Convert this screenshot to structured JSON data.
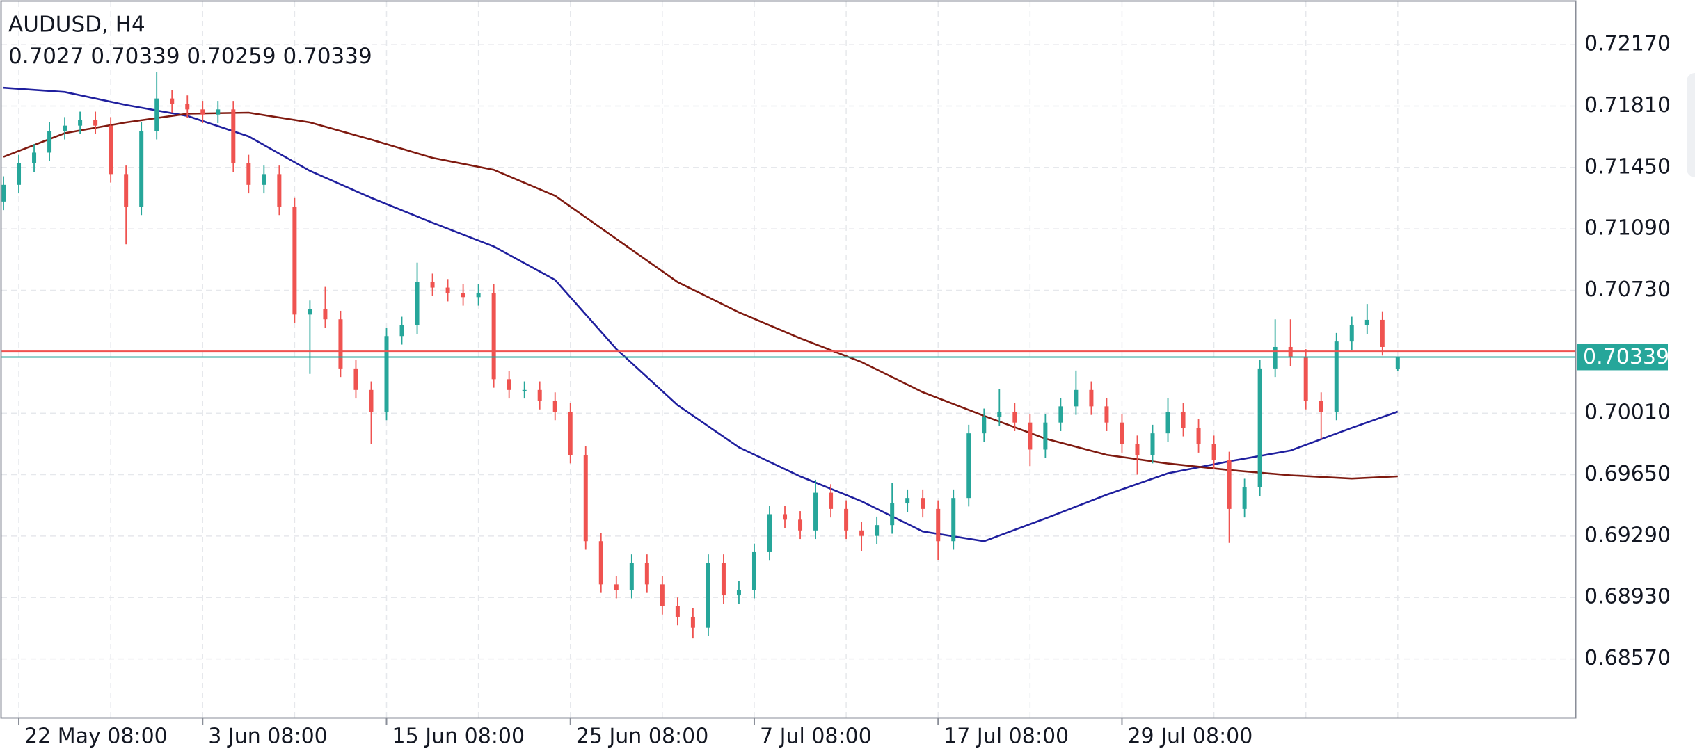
{
  "chart_data": {
    "type": "candlestick",
    "title": "AUDUSD, H4",
    "x": [
      null,
      "22 May 08:00",
      null,
      null,
      null,
      null,
      null,
      null,
      null,
      null,
      null,
      null,
      null,
      "3 Jun 08:00",
      null,
      null,
      null,
      null,
      null,
      null,
      null,
      null,
      null,
      null,
      null,
      "15 Jun 08:00",
      null,
      null,
      null,
      null,
      null,
      null,
      null,
      null,
      null,
      null,
      null,
      "25 Jun 08:00",
      null,
      null,
      null,
      null,
      null,
      null,
      null,
      null,
      null,
      null,
      null,
      "7 Jul 08:00",
      null,
      null,
      null,
      null,
      null,
      null,
      null,
      null,
      null,
      null,
      null,
      "17 Jul 08:00",
      null,
      null,
      null,
      null,
      null,
      null,
      null,
      null,
      null,
      null,
      null,
      "29 Jul 08:00",
      null,
      null,
      null,
      null,
      null,
      null,
      null,
      null,
      null,
      null,
      null,
      null,
      null,
      null,
      null,
      null,
      null,
      null
    ],
    "open": [
      0.7125,
      0.71348,
      0.71474,
      0.71537,
      0.71664,
      0.71695,
      0.71727,
      0.71695,
      0.71411,
      0.71221,
      0.71664,
      0.71854,
      0.71822,
      0.7179,
      0.7176,
      0.7179,
      0.71474,
      0.71348,
      0.71411,
      0.71221,
      0.70588,
      0.7062,
      0.7056,
      0.70272,
      0.70146,
      0.70019,
      0.70462,
      0.70525,
      0.70778,
      0.70746,
      0.70715,
      0.7069,
      0.70715,
      0.70209,
      0.70146,
      0.70146,
      0.70082,
      0.70019,
      0.69766,
      0.6926,
      0.69007,
      0.68975,
      0.69133,
      0.69007,
      0.6888,
      0.68817,
      0.68753,
      0.69133,
      0.68943,
      0.68975,
      0.69196,
      0.69418,
      0.69386,
      0.69323,
      0.69544,
      0.69449,
      0.69323,
      0.69291,
      0.69354,
      0.69481,
      0.69513,
      0.69449,
      0.6926,
      0.69513,
      0.69892,
      0.69987,
      0.70019,
      0.69955,
      0.69797,
      0.69955,
      0.7005,
      0.70146,
      0.7005,
      0.69955,
      0.69829,
      0.69766,
      0.69892,
      0.70019,
      0.69924,
      0.69829,
      0.69734,
      0.69449,
      0.69576,
      0.70272,
      0.70398,
      0.70335,
      0.70082,
      0.70019,
      0.7043,
      0.70525,
      0.70557,
      0.7027
    ],
    "high": [
      0.71398,
      0.71524,
      0.71587,
      0.71714,
      0.71745,
      0.71777,
      0.71777,
      0.71745,
      0.71461,
      0.71714,
      0.7201,
      0.71904,
      0.71872,
      0.7184,
      0.7184,
      0.7184,
      0.71524,
      0.71461,
      0.71461,
      0.71271,
      0.7067,
      0.7075,
      0.7061,
      0.70322,
      0.70196,
      0.70512,
      0.70575,
      0.70892,
      0.70828,
      0.70796,
      0.70765,
      0.70765,
      0.70765,
      0.70259,
      0.70196,
      0.70196,
      0.70132,
      0.70069,
      0.69816,
      0.6931,
      0.69057,
      0.69183,
      0.69183,
      0.69057,
      0.6893,
      0.68867,
      0.69183,
      0.69183,
      0.69025,
      0.69246,
      0.69468,
      0.69468,
      0.69436,
      0.6962,
      0.69594,
      0.69499,
      0.69373,
      0.69404,
      0.696,
      0.69563,
      0.69563,
      0.69499,
      0.69563,
      0.69942,
      0.70037,
      0.7015,
      0.70069,
      0.70005,
      0.70005,
      0.701,
      0.7026,
      0.70196,
      0.701,
      0.70005,
      0.69879,
      0.69942,
      0.701,
      0.70069,
      0.69974,
      0.69879,
      0.69784,
      0.69626,
      0.70322,
      0.7056,
      0.7056,
      0.70385,
      0.70132,
      0.7048,
      0.70575,
      0.7065,
      0.70607,
      0.70339
    ],
    "low": [
      0.712,
      0.71298,
      0.71424,
      0.71487,
      0.71614,
      0.71645,
      0.71645,
      0.71361,
      0.71,
      0.71171,
      0.71614,
      0.71772,
      0.7174,
      0.7171,
      0.7171,
      0.71424,
      0.71298,
      0.71298,
      0.71171,
      0.70538,
      0.7024,
      0.7051,
      0.70222,
      0.70096,
      0.69829,
      0.69969,
      0.70412,
      0.70475,
      0.70696,
      0.70665,
      0.7064,
      0.7064,
      0.70159,
      0.70096,
      0.70096,
      0.70032,
      0.69969,
      0.69716,
      0.6921,
      0.68957,
      0.68925,
      0.68925,
      0.68957,
      0.6883,
      0.68767,
      0.6869,
      0.68703,
      0.68893,
      0.68893,
      0.68925,
      0.69146,
      0.69336,
      0.69273,
      0.69273,
      0.69399,
      0.69273,
      0.692,
      0.69241,
      0.69304,
      0.69431,
      0.69399,
      0.6915,
      0.6921,
      0.69463,
      0.69842,
      0.69937,
      0.69905,
      0.697,
      0.69747,
      0.69905,
      0.7,
      0.7,
      0.69905,
      0.69779,
      0.6965,
      0.69716,
      0.69842,
      0.69874,
      0.69779,
      0.69684,
      0.6925,
      0.69399,
      0.69526,
      0.70222,
      0.70285,
      0.70032,
      0.6986,
      0.69969,
      0.7038,
      0.70475,
      0.70348,
      0.70259
    ],
    "close": [
      0.71348,
      0.71474,
      0.71537,
      0.71664,
      0.71695,
      0.71727,
      0.71695,
      0.71411,
      0.71221,
      0.71664,
      0.71854,
      0.71822,
      0.7179,
      0.7176,
      0.7179,
      0.71474,
      0.71348,
      0.71411,
      0.71221,
      0.70588,
      0.7062,
      0.7056,
      0.70272,
      0.70146,
      0.70019,
      0.70462,
      0.70525,
      0.70778,
      0.70746,
      0.70715,
      0.7069,
      0.70715,
      0.70209,
      0.70146,
      0.70146,
      0.70082,
      0.70019,
      0.69766,
      0.6926,
      0.69007,
      0.68975,
      0.69133,
      0.69007,
      0.6888,
      0.68817,
      0.68753,
      0.69133,
      0.68943,
      0.68975,
      0.69196,
      0.69418,
      0.69386,
      0.69323,
      0.69544,
      0.69449,
      0.69323,
      0.69291,
      0.69354,
      0.69481,
      0.69513,
      0.69449,
      0.6926,
      0.69513,
      0.69892,
      0.69987,
      0.70019,
      0.69955,
      0.69797,
      0.69955,
      0.7005,
      0.70146,
      0.7005,
      0.69955,
      0.69829,
      0.69766,
      0.69892,
      0.70019,
      0.69924,
      0.69829,
      0.69734,
      0.69449,
      0.69576,
      0.70272,
      0.70398,
      0.70335,
      0.70082,
      0.70019,
      0.7043,
      0.70525,
      0.70557,
      0.70398,
      0.70339
    ],
    "up_color": "#26a69a",
    "down_color": "#ef5350",
    "moving_averages": [
      {
        "color": "#1f1f9e",
        "x": [
          0,
          4,
          8,
          12,
          16,
          20,
          24,
          28,
          32,
          36,
          40,
          44,
          48,
          52,
          56,
          60,
          64,
          68,
          72,
          76,
          80,
          84,
          88,
          91
        ],
        "values": [
          0.71917,
          0.71892,
          0.71816,
          0.71752,
          0.71632,
          0.7143,
          0.71272,
          0.71126,
          0.70987,
          0.70791,
          0.70386,
          0.70057,
          0.6981,
          0.6964,
          0.69494,
          0.69317,
          0.6926,
          0.69393,
          0.69532,
          0.69658,
          0.69728,
          0.69791,
          0.69924,
          0.70019
        ]
      },
      {
        "color": "#7f1a10",
        "x": [
          0,
          4,
          8,
          12,
          16,
          20,
          24,
          28,
          32,
          36,
          40,
          44,
          48,
          52,
          56,
          60,
          64,
          68,
          72,
          76,
          80,
          84,
          88,
          91
        ],
        "values": [
          0.71512,
          0.71651,
          0.71714,
          0.71765,
          0.71771,
          0.71714,
          0.71613,
          0.71506,
          0.71436,
          0.71284,
          0.71031,
          0.70778,
          0.70601,
          0.70449,
          0.7031,
          0.70133,
          0.69994,
          0.69861,
          0.69766,
          0.69715,
          0.69677,
          0.69646,
          0.69627,
          0.6964
        ]
      }
    ],
    "price_lines": [
      {
        "value": 0.70339,
        "color": "#26a69a"
      },
      {
        "value": 0.70373,
        "color": "#ef5350"
      }
    ],
    "ylim": [
      0.68222,
      0.72423
    ],
    "yticks": [
      {
        "value": 0.6857,
        "label": "0.68570"
      },
      {
        "value": 0.6893,
        "label": "0.68930"
      },
      {
        "value": 0.6929,
        "label": "0.69290"
      },
      {
        "value": 0.6965,
        "label": "0.69650"
      },
      {
        "value": 0.7001,
        "label": "0.70010"
      },
      {
        "value": 0.7073,
        "label": "0.70730"
      },
      {
        "value": 0.7109,
        "label": "0.71090"
      },
      {
        "value": 0.7145,
        "label": "0.71450"
      },
      {
        "value": 0.7181,
        "label": "0.71810"
      },
      {
        "value": 0.7217,
        "label": "0.72170"
      }
    ],
    "grid": true
  }
}
